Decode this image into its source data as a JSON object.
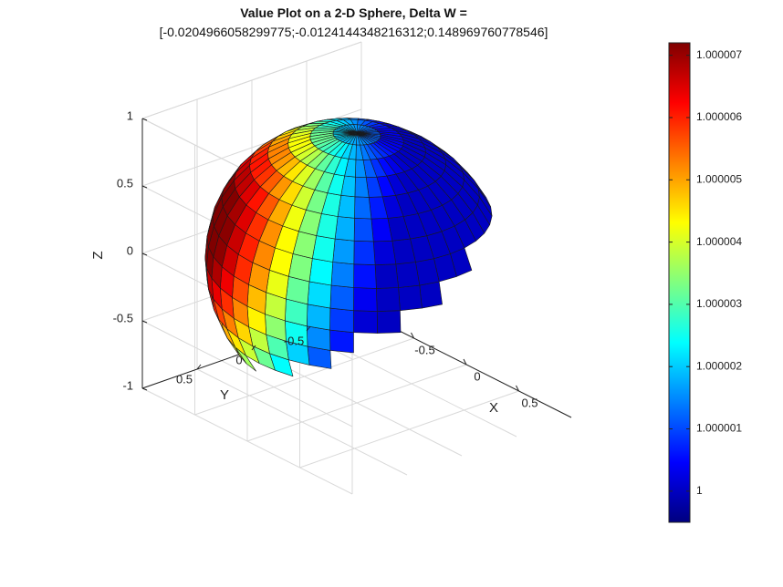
{
  "chart_data": {
    "type": "surface",
    "title": "Value Plot on a 2-D Sphere, Delta W =",
    "subtitle": "[-0.0204966058299775;-0.0124144348216312;0.148969760778546]",
    "xlabel": "X",
    "ylabel": "Y",
    "zlabel": "Z",
    "xticks": [
      "-0.5",
      "0",
      "0.5"
    ],
    "yticks": [
      "-0.5",
      "0",
      "0.5"
    ],
    "zticks": [
      "-1",
      "-0.5",
      "0",
      "0.5",
      "1"
    ],
    "xlim": [
      -1,
      1
    ],
    "ylim": [
      -1,
      1
    ],
    "zlim": [
      -1,
      1
    ],
    "grid": true,
    "colormap": "jet",
    "color_range": [
      0.9999995,
      1.0000072
    ],
    "colorbar_ticks": [
      "1",
      "1.000001",
      "1.000002",
      "1.000003",
      "1.000004",
      "1.000005",
      "1.000006",
      "1.000007"
    ],
    "colorbar_tick_values": [
      1.0,
      1.000001,
      1.000002,
      1.000003,
      1.000004,
      1.000005,
      1.000006,
      1.000007
    ],
    "delta_w": [
      -0.0204966058299775,
      -0.0124144348216312,
      0.148969760778546
    ],
    "value_model": "1 + 0.0000075 * (max(0, dot(n, [-0.6, 0.74, 0.31])))^1.3",
    "sphere_radius": 1,
    "latitude_bands": 20,
    "longitude_bands": 40
  }
}
